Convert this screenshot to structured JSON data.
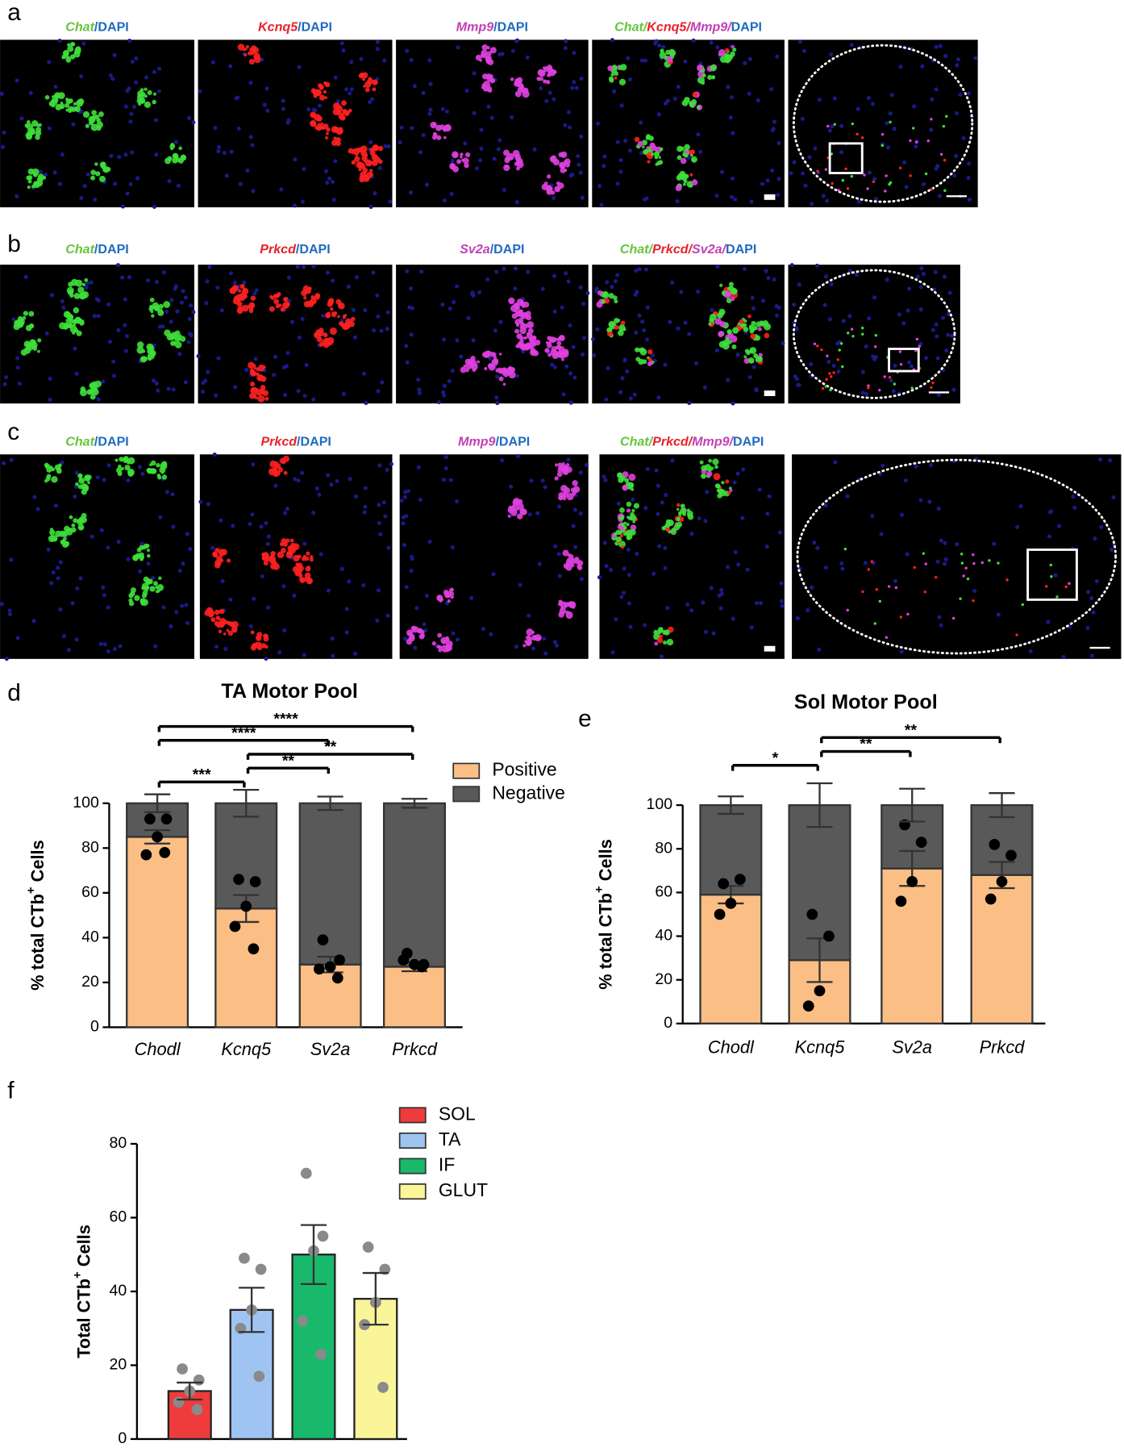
{
  "panels": [
    {
      "letter": "a",
      "images": [
        {
          "label": [
            {
              "text": "Chat",
              "color": "#66c43a"
            },
            {
              "text": "/DAPI",
              "color": "#1e6ac0"
            }
          ]
        },
        {
          "label": [
            {
              "text": "Kcnq5",
              "color": "#e8202a"
            },
            {
              "text": "/DAPI",
              "color": "#1e6ac0"
            }
          ]
        },
        {
          "label": [
            {
              "text": "Mmp9",
              "color": "#c23fb5"
            },
            {
              "text": "/DAPI",
              "color": "#1e6ac0"
            }
          ]
        },
        {
          "label": [
            {
              "text": "Chat/",
              "color": "#66c43a"
            },
            {
              "text": "Kcnq5/",
              "color": "#e8202a"
            },
            {
              "text": "Mmp9/",
              "color": "#c23fb5"
            },
            {
              "text": "DAPI",
              "color": "#1e6ac0"
            }
          ]
        },
        {
          "label": []
        }
      ]
    },
    {
      "letter": "b",
      "images": [
        {
          "label": [
            {
              "text": "Chat",
              "color": "#66c43a"
            },
            {
              "text": "/DAPI",
              "color": "#1e6ac0"
            }
          ]
        },
        {
          "label": [
            {
              "text": "Prkcd",
              "color": "#e8202a"
            },
            {
              "text": "/DAPI",
              "color": "#1e6ac0"
            }
          ]
        },
        {
          "label": [
            {
              "text": "Sv2a",
              "color": "#c23fb5"
            },
            {
              "text": "/DAPI",
              "color": "#1e6ac0"
            }
          ]
        },
        {
          "label": [
            {
              "text": "Chat/",
              "color": "#66c43a"
            },
            {
              "text": "Prkcd/",
              "color": "#e8202a"
            },
            {
              "text": "Sv2a/",
              "color": "#c23fb5"
            },
            {
              "text": "DAPI",
              "color": "#1e6ac0"
            }
          ]
        },
        {
          "label": []
        }
      ]
    },
    {
      "letter": "c",
      "images": [
        {
          "label": [
            {
              "text": "Chat",
              "color": "#66c43a"
            },
            {
              "text": "/DAPI",
              "color": "#1e6ac0"
            }
          ]
        },
        {
          "label": [
            {
              "text": "Prkcd",
              "color": "#e8202a"
            },
            {
              "text": "/DAPI",
              "color": "#1e6ac0"
            }
          ]
        },
        {
          "label": [
            {
              "text": "Mmp9",
              "color": "#c23fb5"
            },
            {
              "text": "/DAPI",
              "color": "#1e6ac0"
            }
          ]
        },
        {
          "label": [
            {
              "text": "Chat/",
              "color": "#66c43a"
            },
            {
              "text": "Prkcd/",
              "color": "#e8202a"
            },
            {
              "text": "Mmp9/",
              "color": "#c23fb5"
            },
            {
              "text": "DAPI",
              "color": "#1e6ac0"
            }
          ]
        },
        {
          "label": []
        }
      ]
    }
  ],
  "chart_data": [
    {
      "type": "stacked_bar",
      "panel_label": "d",
      "title": "TA Motor Pool",
      "ylabel": {
        "text": "% total CTb",
        "sup": "+",
        "after": " Cells"
      },
      "categories": [
        "Chodl",
        "Kcnq5",
        "Sv2a",
        "Prkcd"
      ],
      "ylim": [
        0,
        100
      ],
      "yticks": [
        0,
        20,
        40,
        60,
        80,
        100
      ],
      "legend": "upper right",
      "series": [
        {
          "name": "Positive",
          "color": "#fbbf85",
          "values": [
            85,
            53,
            28,
            27
          ],
          "errors": [
            3,
            6,
            3.5,
            2
          ],
          "points": [
            [
              93,
              93,
              85,
              77,
              78
            ],
            [
              66,
              65,
              54,
              45,
              35
            ],
            [
              39,
              30,
              27,
              26,
              22
            ],
            [
              33,
              28,
              28,
              30,
              27
            ]
          ]
        },
        {
          "name": "Negative",
          "color": "#595959",
          "values": [
            15,
            47,
            72,
            73
          ],
          "errors": [
            4,
            6,
            3,
            2
          ]
        }
      ],
      "annotations": [
        {
          "text": "***",
          "from": 0,
          "to": 1
        },
        {
          "text": "**",
          "from": 1,
          "to": 2
        },
        {
          "text": "**",
          "from": 1,
          "to": 3
        },
        {
          "text": "****",
          "from": 0,
          "to": 2
        },
        {
          "text": "****",
          "from": 0,
          "to": 3
        }
      ]
    },
    {
      "type": "stacked_bar",
      "panel_label": "e",
      "title": "Sol Motor Pool",
      "ylabel": {
        "text": "% total CTb",
        "sup": "+",
        "after": " Cells"
      },
      "categories": [
        "Chodl",
        "Kcnq5",
        "Sv2a",
        "Prkcd"
      ],
      "ylim": [
        0,
        100
      ],
      "yticks": [
        0,
        20,
        40,
        60,
        80,
        100
      ],
      "series": [
        {
          "name": "Positive",
          "color": "#fbbf85",
          "values": [
            59,
            29,
            71,
            68
          ],
          "errors": [
            4,
            10,
            8,
            6
          ],
          "points": [
            [
              64,
              66,
              55,
              50
            ],
            [
              50,
              40,
              15,
              8
            ],
            [
              91,
              83,
              65,
              56
            ],
            [
              82,
              77,
              65,
              57
            ]
          ]
        },
        {
          "name": "Negative",
          "color": "#595959",
          "values": [
            41,
            71,
            29,
            32
          ],
          "errors": [
            4,
            10,
            7.5,
            5.5
          ]
        }
      ],
      "annotations": [
        {
          "text": "*",
          "from": 0,
          "to": 1
        },
        {
          "text": "**",
          "from": 1,
          "to": 2
        },
        {
          "text": "**",
          "from": 1,
          "to": 3
        }
      ]
    },
    {
      "type": "bar",
      "panel_label": "f",
      "ylabel": {
        "text": "Total CTb",
        "sup": "+",
        "after": " Cells"
      },
      "ylim": [
        0,
        80
      ],
      "yticks": [
        0,
        20,
        40,
        60,
        80
      ],
      "legend": "upper right",
      "series": [
        {
          "name": "SOL",
          "color": "#ef3b3b",
          "values": [
            13
          ],
          "errors": [
            2.3
          ],
          "points": [
            [
              19,
              16,
              13,
              10,
              8
            ]
          ]
        },
        {
          "name": "TA",
          "color": "#a0c4f2",
          "values": [
            35
          ],
          "errors": [
            6
          ],
          "points": [
            [
              49,
              46,
              35,
              30,
              17
            ]
          ]
        },
        {
          "name": "IF",
          "color": "#18b96b",
          "values": [
            50
          ],
          "errors": [
            8
          ],
          "points": [
            [
              72,
              55,
              51,
              32,
              23
            ]
          ]
        },
        {
          "name": "GLUT",
          "color": "#fbf59a",
          "values": [
            38
          ],
          "errors": [
            7
          ],
          "points": [
            [
              52,
              46,
              37,
              31,
              14
            ]
          ]
        }
      ]
    }
  ]
}
